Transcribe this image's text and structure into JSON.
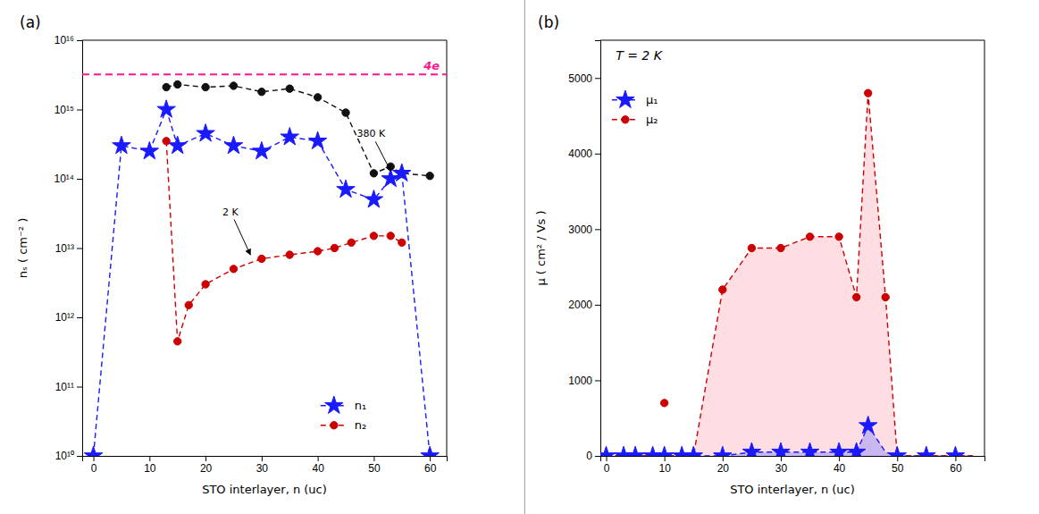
{
  "chart_data": [
    {
      "type": "line",
      "title": "(a)",
      "xlabel": "STO interlayer, n (uc)",
      "ylabel": "nₛ ( cm⁻² )",
      "log": "y",
      "grid": false,
      "legend": "lower right",
      "xlim": [
        -2,
        63
      ],
      "ylim": [
        10000000000.0,
        1e+16
      ],
      "xticks": [
        0,
        10,
        20,
        30,
        40,
        50,
        60
      ],
      "yticks": [
        {
          "value": 10000000000.0,
          "label": "10¹⁰"
        },
        {
          "value": 100000000000.0,
          "label": "10¹¹"
        },
        {
          "value": 1000000000000.0,
          "label": "10¹²"
        },
        {
          "value": 10000000000000.0,
          "label": "10¹³"
        },
        {
          "value": 100000000000000.0,
          "label": "10¹⁴"
        },
        {
          "value": 1000000000000000.0,
          "label": "10¹⁵"
        },
        {
          "value": 1e+16,
          "label": "10¹⁶"
        }
      ],
      "series": [
        {
          "color": "#111111",
          "marker": "circle",
          "line_style": "dashed",
          "x": [
            13,
            15,
            20,
            25,
            30,
            35,
            40,
            45,
            50,
            53,
            55,
            60
          ],
          "values": [
            2100000000000000.0,
            2300000000000000.0,
            2100000000000000.0,
            2200000000000000.0,
            1800000000000000.0,
            2000000000000000.0,
            1500000000000000.0,
            900000000000000.0,
            120000000000000.0,
            150000000000000.0,
            120000000000000.0,
            110000000000000.0
          ]
        },
        {
          "name": "n₁",
          "color": "#1a1aff",
          "marker": "star",
          "line_style": "dashed",
          "x": [
            0,
            5,
            10,
            13,
            15,
            20,
            25,
            30,
            35,
            40,
            45,
            50,
            53,
            55,
            60
          ],
          "values": [
            10000000000.0,
            300000000000000.0,
            250000000000000.0,
            1000000000000000.0,
            300000000000000.0,
            450000000000000.0,
            300000000000000.0,
            250000000000000.0,
            400000000000000.0,
            350000000000000.0,
            70000000000000.0,
            50000000000000.0,
            100000000000000.0,
            120000000000000.0,
            10000000000.0
          ]
        },
        {
          "name": "n₂",
          "color": "#cc0000",
          "marker": "circle",
          "line_style": "dashed",
          "x": [
            13,
            15,
            17,
            20,
            25,
            30,
            35,
            40,
            43,
            46,
            50,
            53,
            55
          ],
          "values": [
            350000000000000.0,
            450000000000.0,
            1500000000000.0,
            3000000000000.0,
            5000000000000.0,
            7000000000000.0,
            8000000000000.0,
            9000000000000.0,
            10000000000000.0,
            12000000000000.0,
            15000000000000.0,
            15000000000000.0,
            12000000000000.0
          ]
        }
      ],
      "annotations": [
        {
          "text": "4e",
          "y": 3200000000000000.0,
          "color": "#ff1493",
          "line_style": "dashed"
        },
        {
          "text": "380 K",
          "xy": [
            53,
            130000000000000.0
          ],
          "xytext": [
            47,
            400000000000000.0
          ]
        },
        {
          "text": "2 K",
          "xy": [
            28,
            8000000000000.0
          ],
          "xytext": [
            23,
            30000000000000.0
          ]
        }
      ]
    },
    {
      "type": "line",
      "title": "(b)",
      "xlabel": "STO interlayer, n (uc)",
      "ylabel": "μ ( cm² / Vs )",
      "grid": false,
      "legend": "upper left",
      "xlim": [
        -1,
        65
      ],
      "ylim": [
        0,
        5500
      ],
      "xticks": [
        0,
        10,
        20,
        30,
        40,
        50,
        60
      ],
      "yticks": [
        0,
        1000,
        2000,
        3000,
        4000,
        5000
      ],
      "series": [
        {
          "name": "μ₁",
          "color": "#1a1aff",
          "fill_color": "#8888ff",
          "marker": "star",
          "line_style": "dashed",
          "x": [
            0,
            3,
            5,
            8,
            10,
            13,
            15,
            20,
            25,
            30,
            35,
            40,
            43,
            45,
            48,
            50,
            53,
            55,
            60,
            63
          ],
          "values": [
            0,
            0,
            0,
            0,
            0,
            0,
            0,
            0,
            50,
            50,
            50,
            50,
            50,
            400,
            50,
            0,
            0,
            0,
            0,
            0
          ],
          "marker_x": [
            0,
            3,
            5,
            8,
            10,
            13,
            15,
            20,
            25,
            30,
            35,
            40,
            43,
            45,
            50,
            55,
            60
          ],
          "marker_values": [
            0,
            0,
            0,
            0,
            0,
            0,
            0,
            0,
            50,
            50,
            50,
            50,
            50,
            400,
            0,
            0,
            0
          ]
        },
        {
          "name": "μ₂",
          "color": "#cc0000",
          "fill_color": "#ffb6c1",
          "marker": "circle",
          "line_style": "dashed",
          "x": [
            0,
            3,
            10,
            15,
            20,
            25,
            30,
            35,
            40,
            43,
            45,
            48,
            50,
            55,
            60,
            63
          ],
          "values": [
            0,
            0,
            0,
            0,
            2200,
            2750,
            2750,
            2900,
            2900,
            2100,
            4800,
            2100,
            0,
            0,
            0,
            0
          ],
          "marker_x": [
            10,
            20,
            25,
            30,
            35,
            40,
            43,
            45,
            48
          ],
          "marker_values": [
            700,
            2200,
            2750,
            2750,
            2900,
            2900,
            2100,
            4800,
            2100
          ]
        }
      ],
      "annotations": [
        {
          "text": "T = 2 K"
        }
      ]
    }
  ]
}
